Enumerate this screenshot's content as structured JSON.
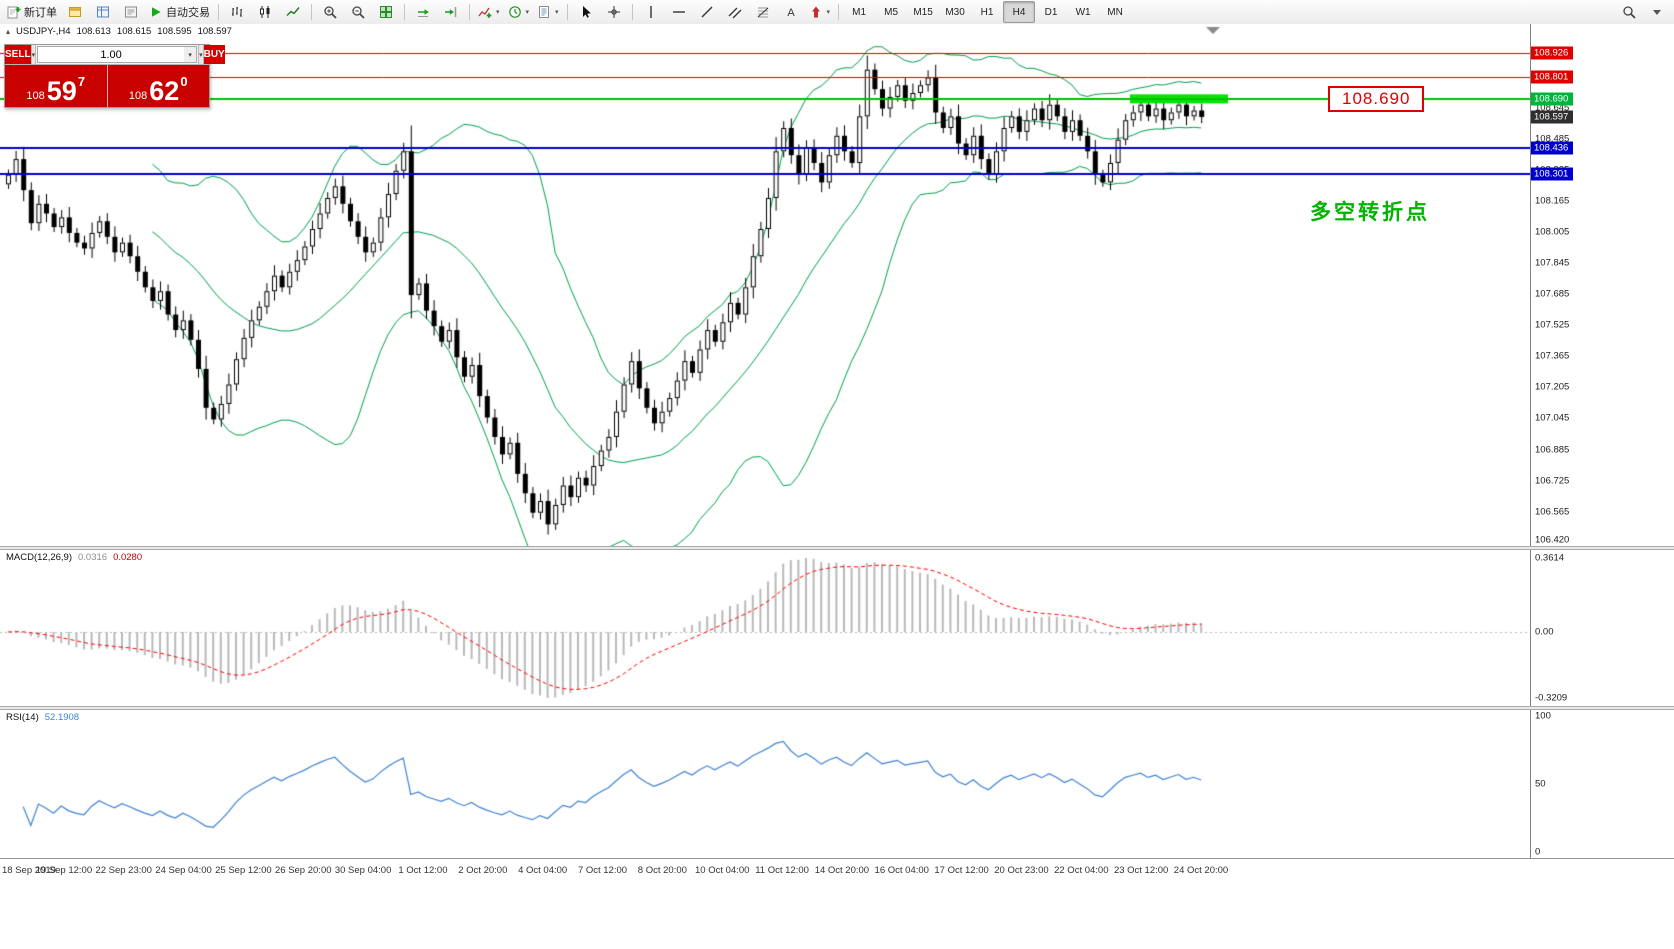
{
  "toolbar": {
    "left_groups": [
      {
        "buttons": [
          {
            "name": "new-order-button",
            "icon": "new-order-icon",
            "label": "新订单"
          },
          {
            "name": "chart-window-button",
            "icon": "window-icon"
          },
          {
            "name": "market-watch-button",
            "icon": "market-watch-icon"
          },
          {
            "name": "data-window-button",
            "icon": "data-window-icon"
          },
          {
            "name": "autotrading-button",
            "icon": "autotrading-icon",
            "label": "自动交易"
          }
        ]
      },
      {
        "buttons": [
          {
            "name": "bar-chart-button",
            "icon": "bar-chart-icon"
          },
          {
            "name": "candlestick-button",
            "icon": "candlestick-icon"
          },
          {
            "name": "line-chart-button",
            "icon": "line-chart-icon"
          }
        ]
      },
      {
        "buttons": [
          {
            "name": "zoom-in-button",
            "icon": "zoom-in-icon"
          },
          {
            "name": "zoom-out-button",
            "icon": "zoom-out-icon"
          },
          {
            "name": "tile-windows-button",
            "icon": "tile-windows-icon"
          }
        ]
      },
      {
        "buttons": [
          {
            "name": "auto-scroll-button",
            "icon": "auto-scroll-icon"
          },
          {
            "name": "chart-shift-button",
            "icon": "chart-shift-icon"
          }
        ]
      },
      {
        "buttons": [
          {
            "name": "indicators-button",
            "icon": "indicators-icon",
            "caret": true
          },
          {
            "name": "periods-button",
            "icon": "periods-icon",
            "caret": true
          },
          {
            "name": "templates-button",
            "icon": "templates-icon",
            "caret": true
          }
        ]
      },
      {
        "buttons": [
          {
            "name": "cursor-button",
            "icon": "cursor-icon"
          },
          {
            "name": "crosshair-button",
            "icon": "crosshair-icon"
          }
        ]
      },
      {
        "buttons": [
          {
            "name": "vertical-line-button",
            "icon": "vertical-line-icon"
          },
          {
            "name": "horizontal-line-button",
            "icon": "horizontal-line-icon"
          },
          {
            "name": "trendline-button",
            "icon": "trendline-icon"
          },
          {
            "name": "channel-button",
            "icon": "channel-icon"
          },
          {
            "name": "fibonacci-button",
            "icon": "fibonacci-icon"
          },
          {
            "name": "text-button",
            "icon": "text-icon"
          },
          {
            "name": "arrows-button",
            "icon": "arrows-icon",
            "caret": true
          }
        ]
      },
      {
        "buttons": [
          {
            "name": "timeframe-m1-button",
            "label": "M1"
          },
          {
            "name": "timeframe-m5-button",
            "label": "M5"
          },
          {
            "name": "timeframe-m15-button",
            "label": "M15"
          },
          {
            "name": "timeframe-m30-button",
            "label": "M30"
          },
          {
            "name": "timeframe-h1-button",
            "label": "H1"
          },
          {
            "name": "timeframe-h4-button",
            "label": "H4",
            "active": true
          },
          {
            "name": "timeframe-d1-button",
            "label": "D1"
          },
          {
            "name": "timeframe-w1-button",
            "label": "W1"
          },
          {
            "name": "timeframe-mn-button",
            "label": "MN"
          }
        ]
      }
    ],
    "right_buttons": [
      {
        "name": "search-button",
        "icon": "search-icon"
      },
      {
        "name": "toolbar-more-button",
        "icon": "caret-down-icon"
      }
    ]
  },
  "chart_header": {
    "symbol_period": "USDJPY-,H4",
    "open": "108.613",
    "high": "108.615",
    "low": "108.595",
    "close": "108.597"
  },
  "trade_widget": {
    "sell_label": "SELL",
    "buy_label": "BUY",
    "volume": "1.00",
    "sell_price_prefix": "108",
    "sell_price_main": "59",
    "sell_price_sup": "7",
    "buy_price_prefix": "108",
    "buy_price_main": "62",
    "buy_price_sup": "0"
  },
  "annotations": {
    "price_box_label": "108.690",
    "note_text": "多空转折点"
  },
  "main_axis": {
    "ticks": [
      "108.805",
      "108.645",
      "108.485",
      "108.325",
      "108.165",
      "108.005",
      "107.845",
      "107.685",
      "107.525",
      "107.365",
      "107.205",
      "107.045",
      "106.885",
      "106.725",
      "106.565",
      "106.420"
    ],
    "markers": [
      {
        "label": "108.926",
        "color": "#e00000"
      },
      {
        "label": "108.801",
        "color": "#e00000"
      },
      {
        "label": "108.690",
        "color": "#00b43c"
      },
      {
        "label": "108.597",
        "color": "#2f2f2f"
      },
      {
        "label": "108.436",
        "color": "#0000cc"
      },
      {
        "label": "108.301",
        "color": "#0000cc"
      }
    ]
  },
  "macd_panel": {
    "title": "MACD(12,26,9)",
    "value1": "0.0316",
    "value2": "0.0280",
    "ticks": [
      "0.3614",
      "0.00",
      "-0.3209"
    ]
  },
  "rsi_panel": {
    "title": "RSI(14)",
    "value": "52.1908",
    "ticks": [
      "100",
      "50",
      "0"
    ]
  },
  "time_axis": {
    "labels": [
      "18 Sep 2019",
      "19 Sep 12:00",
      "22 Sep 23:00",
      "24 Sep 04:00",
      "25 Sep 12:00",
      "26 Sep 20:00",
      "30 Sep 04:00",
      "1 Oct 12:00",
      "2 Oct 20:00",
      "4 Oct 04:00",
      "7 Oct 12:00",
      "8 Oct 20:00",
      "10 Oct 04:00",
      "11 Oct 12:00",
      "14 Oct 20:00",
      "16 Oct 04:00",
      "17 Oct 12:00",
      "20 Oct 23:00",
      "22 Oct 04:00",
      "23 Oct 12:00",
      "24 Oct 20:00"
    ]
  },
  "colors": {
    "bull": "#ffffff",
    "bear": "#000000",
    "wick": "#000000",
    "bollinger": "#00a050",
    "red_line": "#e00000",
    "blue_line": "#0000cc",
    "green_line": "#00c000",
    "highlight": "#00e400",
    "macd_hist": "#b9b9b9",
    "macd_signal": "#ff0000",
    "rsi_line": "#3f83d6"
  },
  "chart_data": {
    "type": "candlestick",
    "symbol": "USDJPY-",
    "timeframe": "H4",
    "y_range": [
      106.39,
      109.07
    ],
    "price_lines": [
      {
        "price": 108.926,
        "color": "#e00000",
        "width": 1
      },
      {
        "price": 108.801,
        "color": "#e00000",
        "width": 1
      },
      {
        "price": 108.69,
        "color": "#00c000",
        "width": 2
      },
      {
        "price": 108.436,
        "color": "#0000cc",
        "width": 2
      },
      {
        "price": 108.301,
        "color": "#0000cc",
        "width": 2
      }
    ],
    "highlight_bar": {
      "price": 108.69,
      "x_start": 1130,
      "x_end": 1228
    },
    "first_open": 108.25,
    "closes": [
      108.3,
      108.38,
      108.22,
      108.05,
      108.15,
      108.1,
      108.03,
      108.08,
      108.0,
      107.95,
      107.92,
      108.0,
      108.06,
      107.98,
      107.9,
      107.95,
      107.88,
      107.8,
      107.72,
      107.65,
      107.7,
      107.58,
      107.5,
      107.55,
      107.45,
      107.3,
      107.1,
      107.04,
      107.12,
      107.22,
      107.35,
      107.46,
      107.55,
      107.62,
      107.7,
      107.78,
      107.72,
      107.8,
      107.86,
      107.93,
      108.02,
      108.1,
      108.18,
      108.24,
      108.15,
      108.06,
      107.98,
      107.9,
      107.95,
      108.08,
      108.2,
      108.32,
      108.42,
      107.68,
      107.74,
      107.6,
      107.52,
      107.44,
      107.5,
      107.36,
      107.26,
      107.32,
      107.16,
      107.05,
      106.95,
      106.86,
      106.92,
      106.76,
      106.66,
      106.56,
      106.62,
      106.5,
      106.6,
      106.7,
      106.64,
      106.74,
      106.7,
      106.8,
      106.88,
      106.95,
      107.08,
      107.22,
      107.34,
      107.2,
      107.1,
      107.02,
      107.08,
      107.15,
      107.24,
      107.34,
      107.28,
      107.4,
      107.5,
      107.44,
      107.54,
      107.64,
      107.58,
      107.72,
      107.88,
      108.02,
      108.18,
      108.42,
      108.54,
      108.4,
      108.3,
      108.44,
      108.36,
      108.26,
      108.4,
      108.5,
      108.42,
      108.36,
      108.6,
      108.84,
      108.74,
      108.64,
      108.7,
      108.76,
      108.68,
      108.72,
      108.76,
      108.8,
      108.62,
      108.54,
      108.6,
      108.46,
      108.4,
      108.5,
      108.38,
      108.3,
      108.42,
      108.54,
      108.6,
      108.52,
      108.58,
      108.64,
      108.58,
      108.66,
      108.6,
      108.52,
      108.58,
      108.5,
      108.42,
      108.3,
      108.26,
      108.36,
      108.48,
      108.58,
      108.62,
      108.66,
      108.6,
      108.64,
      108.58,
      108.62,
      108.66,
      108.6,
      108.63,
      108.597
    ],
    "indicators": [
      {
        "name": "Bollinger Bands",
        "period": 20,
        "deviation": 2
      },
      {
        "name": "MACD",
        "fast": 12,
        "slow": 26,
        "signal": 9,
        "current_values": [
          0.0316,
          0.028
        ]
      },
      {
        "name": "RSI",
        "period": 14,
        "current_value": 52.1908
      }
    ]
  }
}
